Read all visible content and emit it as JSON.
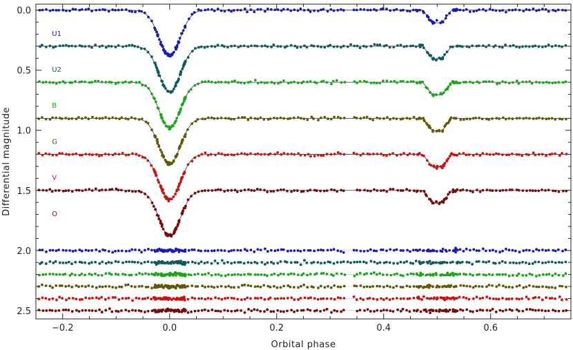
{
  "chart_data": {
    "type": "scatter",
    "title": "",
    "xlabel": "Orbital phase",
    "ylabel": "Differential magnitude",
    "xlim": [
      -0.25,
      0.75
    ],
    "ylim": [
      2.57,
      -0.05
    ],
    "y_inverted": true,
    "grid": false,
    "x_ticks": [
      -0.2,
      0.0,
      0.2,
      0.4,
      0.6
    ],
    "x_tick_labels": [
      "−0.2",
      "0.0",
      "0.2",
      "0.4",
      "0.6"
    ],
    "y_ticks": [
      0.0,
      0.5,
      1.0,
      1.5,
      2.0,
      2.5
    ],
    "y_tick_labels": [
      "0.0",
      "0.5",
      "1.0",
      "1.5",
      "2.0",
      "2.5"
    ],
    "eclipse_model": {
      "primary": {
        "phase": 0.0,
        "depth": 0.38,
        "width": 0.02
      },
      "secondary": {
        "phase": 0.5,
        "depth": 0.105,
        "half_width": 0.027,
        "ingress": 0.018
      }
    },
    "series": [
      {
        "name": "U1",
        "light_curve_offset": 0.0,
        "residual_level": 2.0,
        "color": "#1a1ab4"
      },
      {
        "name": "U2",
        "light_curve_offset": 0.3,
        "residual_level": 2.1,
        "color": "#0f5a5f"
      },
      {
        "name": "B",
        "light_curve_offset": 0.6,
        "residual_level": 2.2,
        "color": "#1ea51e"
      },
      {
        "name": "G",
        "light_curve_offset": 0.9,
        "residual_level": 2.3,
        "color": "#5f5a0a"
      },
      {
        "name": "V",
        "light_curve_offset": 1.2,
        "residual_level": 2.4,
        "color": "#c81414"
      },
      {
        "name": "O",
        "light_curve_offset": 1.5,
        "residual_level": 2.5,
        "color": "#780a0a"
      }
    ]
  }
}
